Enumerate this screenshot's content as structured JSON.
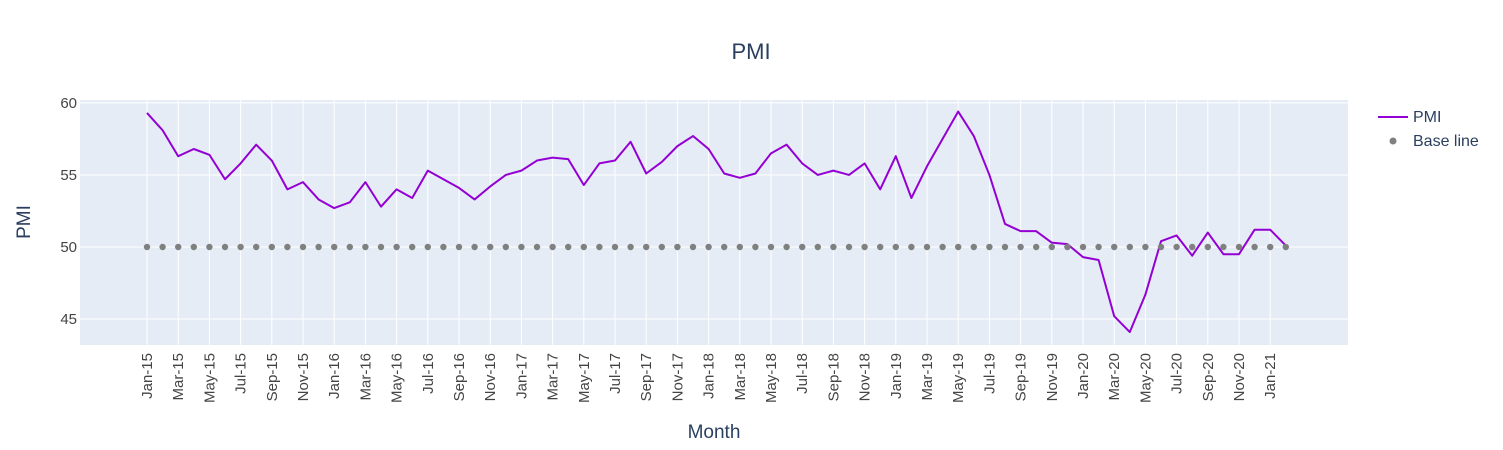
{
  "colors": {
    "plot_background": "#e5ecf6",
    "grid": "#ffffff",
    "pmi_line": "#9400d3",
    "base_line": "#808080",
    "text": "#2a3f5f",
    "tick_text": "#444444"
  },
  "chart_data": {
    "type": "line",
    "title": "PMI",
    "xlabel": "Month",
    "ylabel": "PMI",
    "ylim": [
      43.2,
      60.2
    ],
    "yticks": [
      45,
      50,
      55,
      60
    ],
    "grid": true,
    "legend_position": "top-right",
    "x": [
      "Jan-15",
      "Feb-15",
      "Mar-15",
      "Apr-15",
      "May-15",
      "Jun-15",
      "Jul-15",
      "Aug-15",
      "Sep-15",
      "Oct-15",
      "Nov-15",
      "Dec-15",
      "Jan-16",
      "Feb-16",
      "Mar-16",
      "Apr-16",
      "May-16",
      "Jun-16",
      "Jul-16",
      "Aug-16",
      "Sep-16",
      "Oct-16",
      "Nov-16",
      "Dec-16",
      "Jan-17",
      "Feb-17",
      "Mar-17",
      "Apr-17",
      "May-17",
      "Jun-17",
      "Jul-17",
      "Aug-17",
      "Sep-17",
      "Oct-17",
      "Nov-17",
      "Dec-17",
      "Jan-18",
      "Feb-18",
      "Mar-18",
      "Apr-18",
      "May-18",
      "Jun-18",
      "Jul-18",
      "Aug-18",
      "Sep-18",
      "Oct-18",
      "Nov-18",
      "Dec-18",
      "Jan-19",
      "Feb-19",
      "Mar-19",
      "Apr-19",
      "May-19",
      "Jun-19",
      "Jul-19",
      "Aug-19",
      "Sep-19",
      "Oct-19",
      "Nov-19",
      "Dec-19",
      "Jan-20",
      "Feb-20",
      "Mar-20",
      "Apr-20",
      "May-20",
      "Jun-20",
      "Jul-20",
      "Aug-20",
      "Sep-20",
      "Oct-20",
      "Nov-20",
      "Dec-20",
      "Jan-21",
      "Feb-21"
    ],
    "xticks": [
      "Jan-15",
      "Mar-15",
      "May-15",
      "Jul-15",
      "Sep-15",
      "Nov-15",
      "Jan-16",
      "Mar-16",
      "May-16",
      "Jul-16",
      "Sep-16",
      "Nov-16",
      "Jan-17",
      "Mar-17",
      "May-17",
      "Jul-17",
      "Sep-17",
      "Nov-17",
      "Jan-18",
      "Mar-18",
      "May-18",
      "Jul-18",
      "Sep-18",
      "Nov-18",
      "Jan-19",
      "Mar-19",
      "May-19",
      "Jul-19",
      "Sep-19",
      "Nov-19",
      "Jan-20",
      "Mar-20",
      "May-20",
      "Jul-20",
      "Sep-20",
      "Nov-20",
      "Jan-21"
    ],
    "series": [
      {
        "name": "PMI",
        "mode": "lines",
        "color": "#9400d3",
        "values": [
          59.3,
          58.1,
          56.3,
          56.8,
          56.4,
          54.7,
          55.8,
          57.1,
          56.0,
          54.0,
          54.5,
          53.3,
          52.7,
          53.1,
          54.5,
          52.8,
          54.0,
          53.4,
          55.3,
          54.7,
          54.1,
          53.3,
          54.2,
          55.0,
          55.3,
          56.0,
          56.2,
          56.1,
          54.3,
          55.8,
          56.0,
          57.3,
          55.1,
          55.9,
          57.0,
          57.7,
          56.8,
          55.1,
          54.8,
          55.1,
          56.5,
          57.1,
          55.8,
          55.0,
          55.3,
          55.0,
          55.8,
          54.0,
          56.3,
          53.4,
          55.6,
          57.5,
          59.4,
          57.7,
          55.0,
          51.6,
          51.1,
          51.1,
          50.3,
          50.2,
          49.3,
          49.1,
          45.2,
          44.1,
          46.7,
          50.4,
          50.8,
          49.4,
          51.0,
          49.5,
          49.5,
          51.2,
          51.2,
          50.1
        ]
      },
      {
        "name": "Base line",
        "mode": "markers",
        "color": "#808080",
        "values": [
          50,
          50,
          50,
          50,
          50,
          50,
          50,
          50,
          50,
          50,
          50,
          50,
          50,
          50,
          50,
          50,
          50,
          50,
          50,
          50,
          50,
          50,
          50,
          50,
          50,
          50,
          50,
          50,
          50,
          50,
          50,
          50,
          50,
          50,
          50,
          50,
          50,
          50,
          50,
          50,
          50,
          50,
          50,
          50,
          50,
          50,
          50,
          50,
          50,
          50,
          50,
          50,
          50,
          50,
          50,
          50,
          50,
          50,
          50,
          50,
          50,
          50,
          50,
          50,
          50,
          50,
          50,
          50,
          50,
          50,
          50,
          50,
          50,
          50
        ]
      }
    ]
  }
}
